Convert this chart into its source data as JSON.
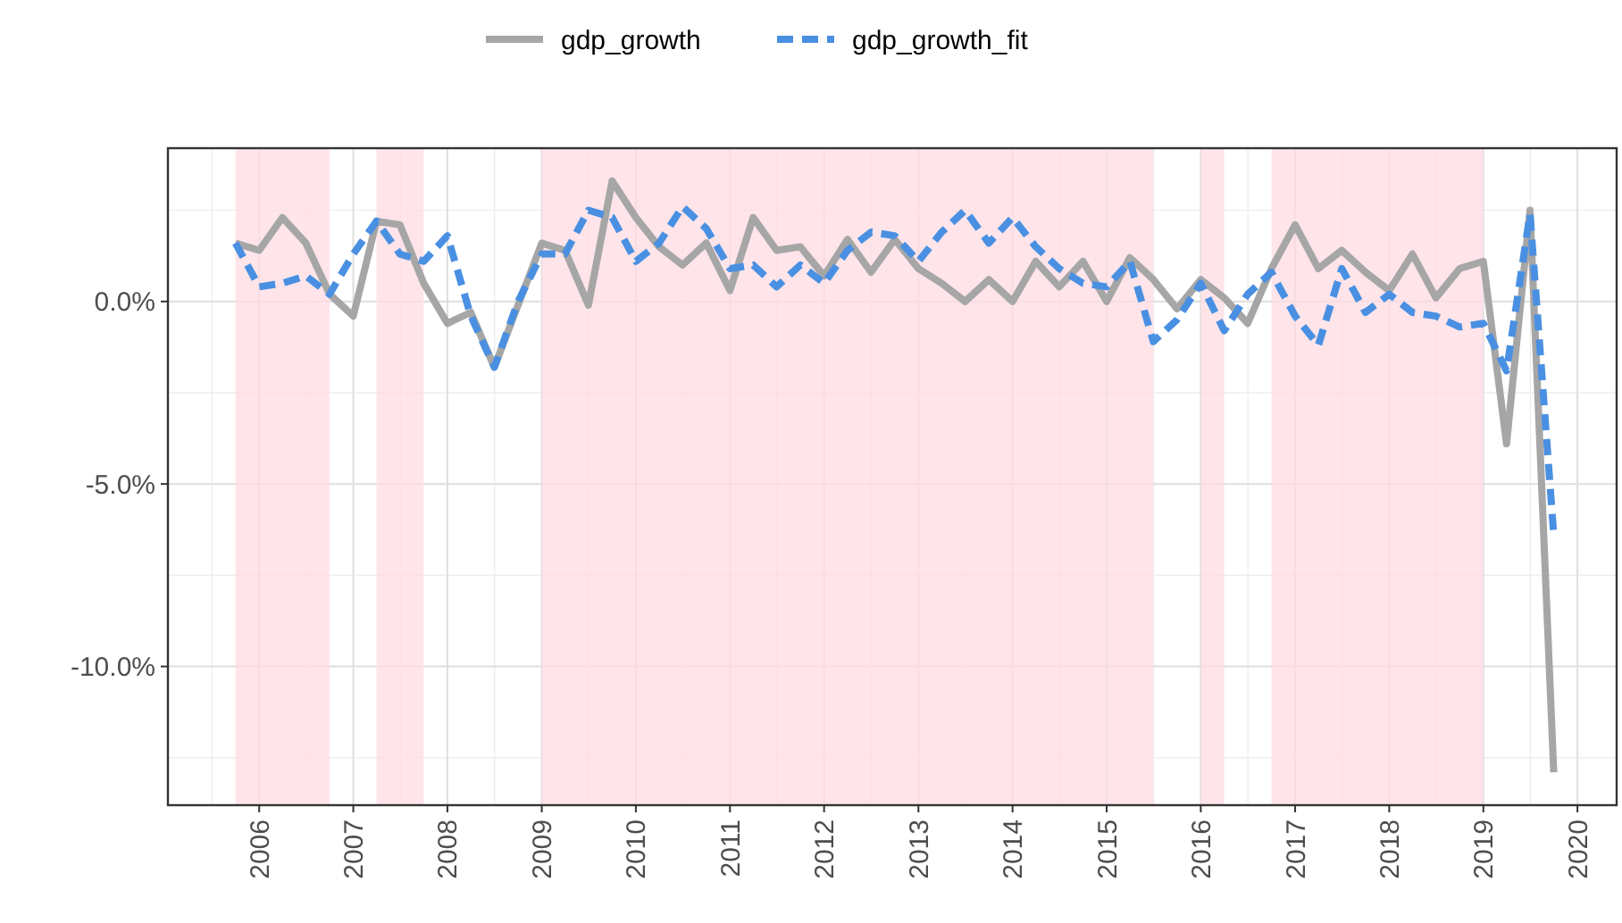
{
  "chart_data": {
    "type": "line",
    "x": [
      "2005-10",
      "2006-01",
      "2006-04",
      "2006-07",
      "2006-10",
      "2007-01",
      "2007-04",
      "2007-07",
      "2007-10",
      "2008-01",
      "2008-04",
      "2008-07",
      "2008-10",
      "2009-01",
      "2009-04",
      "2009-07",
      "2009-10",
      "2010-01",
      "2010-04",
      "2010-07",
      "2010-10",
      "2011-01",
      "2011-04",
      "2011-07",
      "2011-10",
      "2012-01",
      "2012-04",
      "2012-07",
      "2012-10",
      "2013-01",
      "2013-04",
      "2013-07",
      "2013-10",
      "2014-01",
      "2014-04",
      "2014-07",
      "2014-10",
      "2015-01",
      "2015-04",
      "2015-07",
      "2015-10",
      "2016-01",
      "2016-04",
      "2016-07",
      "2016-10",
      "2017-01",
      "2017-04",
      "2017-07",
      "2017-10",
      "2018-01",
      "2018-04",
      "2018-07",
      "2018-10",
      "2019-01",
      "2019-04",
      "2019-07",
      "2019-10"
    ],
    "series": [
      {
        "name": "gdp_growth",
        "color": "#a6a6a6",
        "line_style": "solid",
        "values": [
          1.6,
          1.4,
          2.3,
          1.6,
          0.2,
          -0.4,
          2.2,
          2.1,
          0.5,
          -0.6,
          -0.3,
          -1.8,
          -0.1,
          1.6,
          1.4,
          -0.1,
          3.3,
          2.3,
          1.5,
          1.0,
          1.6,
          0.3,
          2.3,
          1.4,
          1.5,
          0.7,
          1.7,
          0.8,
          1.7,
          0.9,
          0.5,
          0.0,
          0.6,
          0.0,
          1.1,
          0.4,
          1.1,
          0.0,
          1.2,
          0.6,
          -0.2,
          0.6,
          0.1,
          -0.6,
          0.9,
          2.1,
          0.9,
          1.4,
          0.8,
          0.3,
          1.3,
          0.1,
          0.9,
          1.1,
          -3.9,
          2.5,
          -12.9
        ]
      },
      {
        "name": "gdp_growth_fit",
        "color": "#4a90e2",
        "line_style": "dashed",
        "values": [
          1.6,
          0.4,
          0.5,
          0.7,
          0.2,
          1.3,
          2.2,
          1.3,
          1.1,
          1.8,
          -0.4,
          -1.8,
          0.0,
          1.3,
          1.3,
          2.5,
          2.3,
          1.1,
          1.6,
          2.6,
          2.0,
          0.9,
          1.0,
          0.4,
          1.0,
          0.5,
          1.4,
          1.9,
          1.8,
          1.1,
          1.9,
          2.5,
          1.6,
          2.3,
          1.5,
          0.9,
          0.5,
          0.4,
          1.1,
          -1.1,
          -0.5,
          0.5,
          -0.8,
          0.2,
          0.8,
          -0.4,
          -1.2,
          0.9,
          -0.3,
          0.2,
          -0.3,
          -0.4,
          -0.7,
          -0.6,
          -1.9,
          2.4,
          -6.4
        ]
      }
    ],
    "xlim": [
      "2005-01-12",
      "2020-06-01"
    ],
    "xticks": [
      "2006",
      "2007",
      "2008",
      "2009",
      "2010",
      "2011",
      "2012",
      "2013",
      "2014",
      "2015",
      "2016",
      "2017",
      "2018",
      "2019",
      "2020"
    ],
    "ylim": [
      -13.8,
      4.2
    ],
    "yticks": [
      {
        "value": -10,
        "label": "-10.0%"
      },
      {
        "value": -5,
        "label": "-5.0%"
      },
      {
        "value": 0,
        "label": "0.0%"
      }
    ],
    "bands": [
      {
        "axis": "x",
        "from": "2005-10",
        "to": "2006-10",
        "color": "#ffdce3"
      },
      {
        "axis": "x",
        "from": "2007-04",
        "to": "2007-10",
        "color": "#ffdce3"
      },
      {
        "axis": "x",
        "from": "2009-01",
        "to": "2015-07",
        "color": "#ffdce3"
      },
      {
        "axis": "x",
        "from": "2016-01",
        "to": "2016-04",
        "color": "#ffdce3"
      },
      {
        "axis": "x",
        "from": "2016-10",
        "to": "2019-01",
        "color": "#ffdce3"
      }
    ],
    "grid": true,
    "legend": "top"
  }
}
